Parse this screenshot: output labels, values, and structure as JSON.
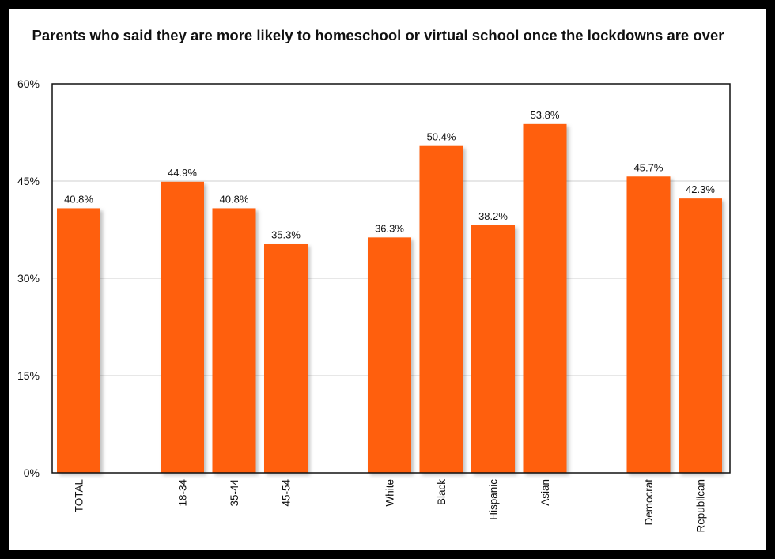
{
  "chart_data": {
    "type": "bar",
    "title": "Parents who said they are more likely to homeschool or virtual school once the lockdowns are over",
    "xlabel": "",
    "ylabel": "",
    "ylim": [
      0,
      60
    ],
    "yticks": [
      "0%",
      "15%",
      "30%",
      "45%",
      "60%"
    ],
    "grid": true,
    "legend": "none",
    "bar_color": "#FF5F0A",
    "categories": [
      "TOTAL",
      "18-34",
      "35-44",
      "45-54",
      "White",
      "Black",
      "Hispanic",
      "Asian",
      "Democrat",
      "Republican"
    ],
    "values": [
      40.8,
      44.9,
      40.8,
      35.3,
      36.3,
      50.4,
      38.2,
      53.8,
      45.7,
      42.3
    ],
    "value_labels": [
      "40.8%",
      "44.9%",
      "40.8%",
      "35.3%",
      "36.3%",
      "50.4%",
      "38.2%",
      "53.8%",
      "45.7%",
      "42.3%"
    ]
  }
}
